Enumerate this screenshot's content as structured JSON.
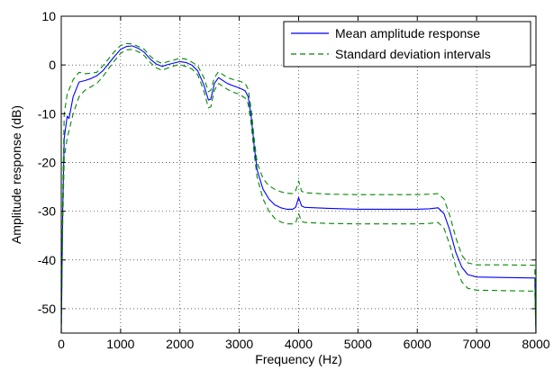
{
  "chart_data": {
    "type": "line",
    "title": "",
    "xlabel": "Frequency (Hz)",
    "ylabel": "Amplitude response (dB)",
    "xlim": [
      0,
      8000
    ],
    "ylim": [
      -55,
      10
    ],
    "xticks": [
      0,
      1000,
      2000,
      3000,
      4000,
      5000,
      6000,
      7000,
      8000
    ],
    "yticks": [
      10,
      0,
      -10,
      -20,
      -30,
      -40,
      -50
    ],
    "grid": true,
    "grid_style": "dotted",
    "legend_position": "top-right",
    "series": [
      {
        "name": "Mean amplitude response",
        "color": "#0000ff",
        "dash": "solid",
        "points": [
          [
            0,
            -55
          ],
          [
            25,
            -30
          ],
          [
            50,
            -15
          ],
          [
            100,
            -10.5
          ],
          [
            130,
            -11
          ],
          [
            200,
            -6.5
          ],
          [
            300,
            -3.5
          ],
          [
            400,
            -3.2
          ],
          [
            500,
            -2.8
          ],
          [
            600,
            -2.2
          ],
          [
            700,
            -1.2
          ],
          [
            800,
            0.3
          ],
          [
            900,
            1.8
          ],
          [
            1000,
            3.2
          ],
          [
            1100,
            3.8
          ],
          [
            1200,
            3.9
          ],
          [
            1300,
            3.4
          ],
          [
            1400,
            2.6
          ],
          [
            1500,
            1.2
          ],
          [
            1600,
            0.2
          ],
          [
            1700,
            -0.3
          ],
          [
            1800,
            0.1
          ],
          [
            1900,
            0.4
          ],
          [
            2000,
            0.7
          ],
          [
            2100,
            0.5
          ],
          [
            2200,
            0.0
          ],
          [
            2300,
            -1.2
          ],
          [
            2400,
            -4.0
          ],
          [
            2480,
            -7.2
          ],
          [
            2520,
            -7.0
          ],
          [
            2580,
            -3.8
          ],
          [
            2650,
            -2.6
          ],
          [
            2700,
            -3.0
          ],
          [
            2800,
            -3.8
          ],
          [
            2900,
            -4.3
          ],
          [
            3000,
            -4.7
          ],
          [
            3100,
            -5.3
          ],
          [
            3150,
            -6.5
          ],
          [
            3200,
            -10.5
          ],
          [
            3250,
            -16.5
          ],
          [
            3300,
            -21.5
          ],
          [
            3400,
            -25.5
          ],
          [
            3500,
            -27.5
          ],
          [
            3600,
            -28.7
          ],
          [
            3700,
            -29.3
          ],
          [
            3800,
            -29.6
          ],
          [
            3900,
            -29.6
          ],
          [
            3950,
            -29.2
          ],
          [
            4000,
            -27.2
          ],
          [
            4050,
            -28.9
          ],
          [
            4100,
            -29.2
          ],
          [
            4500,
            -29.4
          ],
          [
            5000,
            -29.6
          ],
          [
            5500,
            -29.6
          ],
          [
            6000,
            -29.6
          ],
          [
            6200,
            -29.5
          ],
          [
            6350,
            -29.3
          ],
          [
            6450,
            -30.5
          ],
          [
            6550,
            -34.0
          ],
          [
            6650,
            -38.5
          ],
          [
            6750,
            -41.5
          ],
          [
            6850,
            -43.0
          ],
          [
            7000,
            -43.5
          ],
          [
            7500,
            -43.6
          ],
          [
            7980,
            -43.7
          ],
          [
            8000,
            -55
          ]
        ]
      },
      {
        "name": "Standard deviation intervals",
        "color": "#008800",
        "dash": "dashed",
        "points": [
          [
            0,
            -55
          ],
          [
            25,
            -27
          ],
          [
            50,
            -10
          ],
          [
            100,
            -6
          ],
          [
            200,
            -3
          ],
          [
            300,
            -1.5
          ],
          [
            400,
            -1.8
          ],
          [
            500,
            -1.7
          ],
          [
            600,
            -1.5
          ],
          [
            700,
            -0.2
          ],
          [
            800,
            1.3
          ],
          [
            900,
            2.8
          ],
          [
            1000,
            4.0
          ],
          [
            1100,
            4.4
          ],
          [
            1200,
            4.3
          ],
          [
            1300,
            3.8
          ],
          [
            1400,
            3.2
          ],
          [
            1500,
            1.8
          ],
          [
            1600,
            0.8
          ],
          [
            1700,
            0.3
          ],
          [
            1800,
            0.7
          ],
          [
            1900,
            1.0
          ],
          [
            2000,
            1.4
          ],
          [
            2100,
            1.2
          ],
          [
            2200,
            0.6
          ],
          [
            2300,
            -0.2
          ],
          [
            2400,
            -2.5
          ],
          [
            2480,
            -5.5
          ],
          [
            2520,
            -5.2
          ],
          [
            2580,
            -2.6
          ],
          [
            2650,
            -1.4
          ],
          [
            2700,
            -1.8
          ],
          [
            2800,
            -2.6
          ],
          [
            2900,
            -3.0
          ],
          [
            3000,
            -3.3
          ],
          [
            3100,
            -3.8
          ],
          [
            3150,
            -5.0
          ],
          [
            3200,
            -9.0
          ],
          [
            3250,
            -15.0
          ],
          [
            3300,
            -20.0
          ],
          [
            3400,
            -23.3
          ],
          [
            3500,
            -24.8
          ],
          [
            3600,
            -25.5
          ],
          [
            3700,
            -26.0
          ],
          [
            3800,
            -26.3
          ],
          [
            3900,
            -26.4
          ],
          [
            3950,
            -25.8
          ],
          [
            4000,
            -23.8
          ],
          [
            4050,
            -25.9
          ],
          [
            4100,
            -26.2
          ],
          [
            4500,
            -26.5
          ],
          [
            5000,
            -26.6
          ],
          [
            5500,
            -26.6
          ],
          [
            6000,
            -26.6
          ],
          [
            6200,
            -26.5
          ],
          [
            6350,
            -26.4
          ],
          [
            6450,
            -27.5
          ],
          [
            6550,
            -31.0
          ],
          [
            6650,
            -35.5
          ],
          [
            6750,
            -39.0
          ],
          [
            6850,
            -40.6
          ],
          [
            7000,
            -41.0
          ],
          [
            7500,
            -41.0
          ],
          [
            7980,
            -41.1
          ],
          [
            8000,
            -55
          ]
        ]
      },
      {
        "color": "#008800",
        "dash": "dashed",
        "points": [
          [
            0,
            -55
          ],
          [
            25,
            -33
          ],
          [
            50,
            -19
          ],
          [
            100,
            -15
          ],
          [
            200,
            -10
          ],
          [
            300,
            -6.5
          ],
          [
            400,
            -5.2
          ],
          [
            500,
            -4.5
          ],
          [
            600,
            -3.8
          ],
          [
            700,
            -2.4
          ],
          [
            800,
            -0.7
          ],
          [
            900,
            0.9
          ],
          [
            1000,
            2.4
          ],
          [
            1100,
            3.1
          ],
          [
            1200,
            3.2
          ],
          [
            1300,
            2.7
          ],
          [
            1400,
            1.9
          ],
          [
            1500,
            0.5
          ],
          [
            1600,
            -0.6
          ],
          [
            1700,
            -1.1
          ],
          [
            1800,
            -0.6
          ],
          [
            1900,
            -0.2
          ],
          [
            2000,
            0.1
          ],
          [
            2100,
            -0.3
          ],
          [
            2200,
            -0.8
          ],
          [
            2300,
            -2.0
          ],
          [
            2400,
            -5.2
          ],
          [
            2480,
            -8.8
          ],
          [
            2520,
            -8.6
          ],
          [
            2580,
            -5.2
          ],
          [
            2650,
            -3.8
          ],
          [
            2700,
            -4.2
          ],
          [
            2800,
            -5.0
          ],
          [
            2900,
            -5.6
          ],
          [
            3000,
            -6.0
          ],
          [
            3100,
            -6.8
          ],
          [
            3150,
            -8.0
          ],
          [
            3200,
            -12.0
          ],
          [
            3250,
            -18.0
          ],
          [
            3300,
            -23.0
          ],
          [
            3400,
            -27.5
          ],
          [
            3500,
            -30.0
          ],
          [
            3600,
            -31.5
          ],
          [
            3700,
            -32.2
          ],
          [
            3800,
            -32.6
          ],
          [
            3900,
            -32.6
          ],
          [
            3950,
            -32.4
          ],
          [
            4000,
            -30.5
          ],
          [
            4050,
            -32.1
          ],
          [
            4100,
            -32.3
          ],
          [
            4500,
            -32.5
          ],
          [
            5000,
            -32.6
          ],
          [
            5500,
            -32.6
          ],
          [
            6000,
            -32.6
          ],
          [
            6200,
            -32.5
          ],
          [
            6350,
            -32.3
          ],
          [
            6450,
            -33.5
          ],
          [
            6550,
            -37.0
          ],
          [
            6650,
            -41.5
          ],
          [
            6750,
            -44.5
          ],
          [
            6850,
            -45.8
          ],
          [
            7000,
            -46.2
          ],
          [
            7500,
            -46.3
          ],
          [
            7980,
            -46.4
          ],
          [
            8000,
            -55
          ]
        ]
      }
    ]
  }
}
